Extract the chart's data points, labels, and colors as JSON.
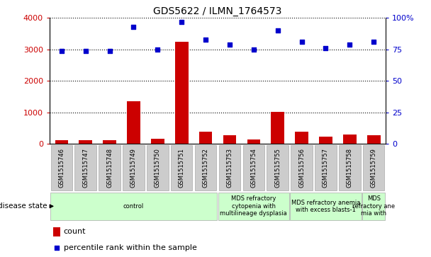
{
  "title": "GDS5622 / ILMN_1764573",
  "samples": [
    "GSM1515746",
    "GSM1515747",
    "GSM1515748",
    "GSM1515749",
    "GSM1515750",
    "GSM1515751",
    "GSM1515752",
    "GSM1515753",
    "GSM1515754",
    "GSM1515755",
    "GSM1515756",
    "GSM1515757",
    "GSM1515758",
    "GSM1515759"
  ],
  "counts": [
    120,
    120,
    120,
    1350,
    170,
    3250,
    380,
    270,
    150,
    1020,
    380,
    220,
    290,
    280
  ],
  "percentile_ranks": [
    74,
    74,
    74,
    93,
    75,
    97,
    83,
    79,
    75,
    90,
    81,
    76,
    79,
    81
  ],
  "bar_color": "#cc0000",
  "dot_color": "#0000cc",
  "left_ylim": [
    0,
    4000
  ],
  "right_ylim": [
    0,
    100
  ],
  "left_yticks": [
    0,
    1000,
    2000,
    3000,
    4000
  ],
  "right_yticks": [
    0,
    25,
    50,
    75,
    100
  ],
  "right_yticklabels": [
    "0",
    "25",
    "50",
    "75",
    "100%"
  ],
  "disease_groups": [
    {
      "label": "control",
      "start": 0,
      "end": 7,
      "color": "#ccffcc"
    },
    {
      "label": "MDS refractory\ncytopenia with\nmultilineage dysplasia",
      "start": 7,
      "end": 10,
      "color": "#ccffcc"
    },
    {
      "label": "MDS refractory anemia\nwith excess blasts-1",
      "start": 10,
      "end": 13,
      "color": "#ccffcc"
    },
    {
      "label": "MDS\nrefractory ane\nmia with",
      "start": 13,
      "end": 14,
      "color": "#ccffcc"
    }
  ],
  "disease_state_label": "disease state",
  "legend_count_label": "count",
  "legend_pct_label": "percentile rank within the sample",
  "bg_color": "#ffffff"
}
